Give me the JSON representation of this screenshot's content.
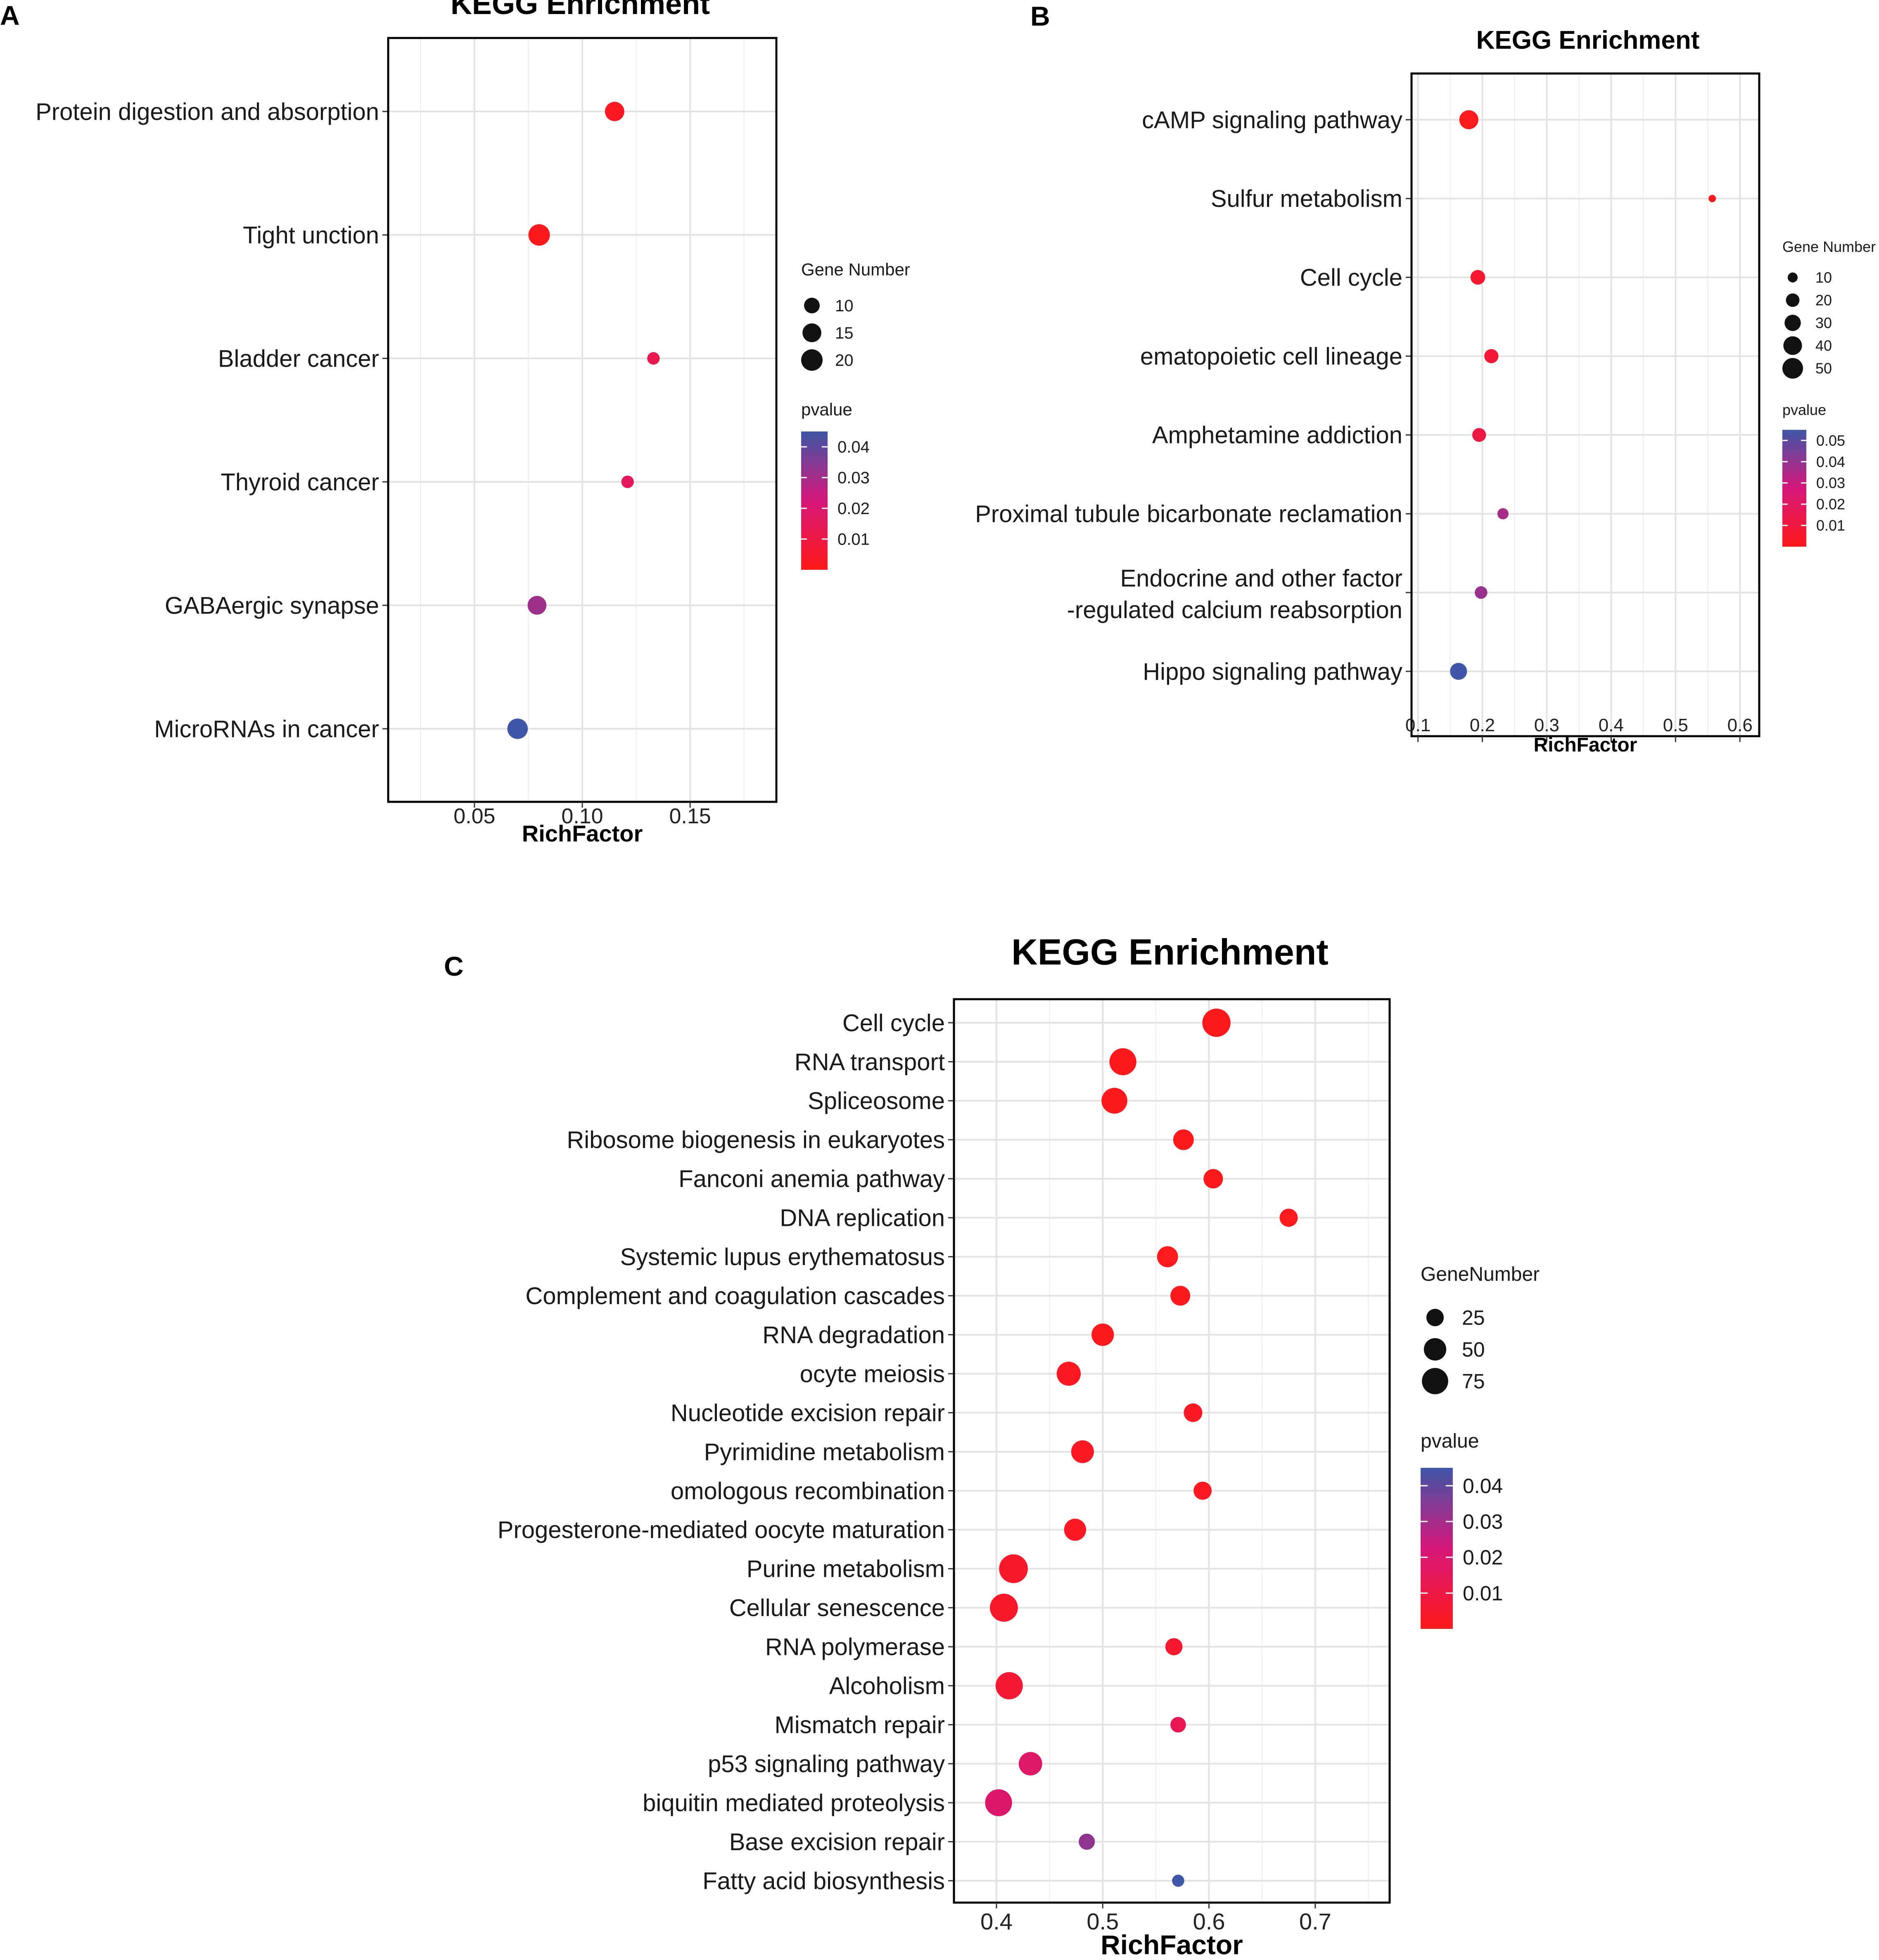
{
  "chart_data": [
    {
      "panel": "A",
      "type": "scatter",
      "title": "KEGG Enrichment",
      "xlabel": "RichFactor",
      "ylabel": "",
      "xlim": [
        0.01,
        0.19
      ],
      "xticks": [
        0.05,
        0.1,
        0.15
      ],
      "xtick_labels": [
        "0.05",
        "0.10",
        "0.15"
      ],
      "categories": [
        "Protein digestion and absorption",
        "Tight  unction",
        "Bladder cancer",
        "Thyroid cancer",
        "GABAergic synapse",
        "MicroRNAs in cancer"
      ],
      "rich_factor": [
        0.115,
        0.08,
        0.133,
        0.121,
        0.079,
        0.07
      ],
      "gene_number": [
        16,
        20,
        6,
        6,
        15,
        18
      ],
      "pvalue": [
        0.002,
        0.001,
        0.012,
        0.015,
        0.031,
        0.045
      ],
      "size_legend": {
        "title": "Gene Number",
        "values": [
          10,
          15,
          20
        ],
        "labels": [
          "10",
          "15",
          "20"
        ]
      },
      "color_legend": {
        "title": "pvalue",
        "range": [
          0.0,
          0.045
        ],
        "ticks": [
          0.04,
          0.03,
          0.02,
          0.01
        ],
        "labels": [
          "0.04",
          "0.03",
          "0.02",
          "0.01"
        ],
        "low_color": "#ff1a1a",
        "mid_color": "#d6177a",
        "high_color": "#3e57a8"
      },
      "grid": true
    },
    {
      "panel": "B",
      "type": "scatter",
      "title": "KEGG Enrichment",
      "xlabel": "RichFactor",
      "ylabel": "",
      "xlim": [
        0.09,
        0.63
      ],
      "xticks": [
        0.1,
        0.2,
        0.3,
        0.4,
        0.5,
        0.6
      ],
      "xtick_labels": [
        "0.1",
        "0.2",
        "0.3",
        "0.4",
        "0.5",
        "0.6"
      ],
      "categories": [
        "cAMP signaling pathway",
        "Sulfur metabolism",
        "Cell cycle",
        "ematopoietic cell lineage",
        "Amphetamine addiction",
        "Proximal tubule bicarbonate reclamation",
        "Endocrine and other factor\n-regulated calcium reabsorption",
        "Hippo signaling pathway"
      ],
      "rich_factor": [
        0.179,
        0.557,
        0.193,
        0.214,
        0.195,
        0.232,
        0.198,
        0.163
      ],
      "gene_number": [
        42,
        5,
        24,
        22,
        21,
        13,
        17,
        33
      ],
      "pvalue": [
        0.001,
        0.001,
        0.006,
        0.008,
        0.012,
        0.036,
        0.039,
        0.055
      ],
      "size_legend": {
        "title": "Gene Number",
        "values": [
          10,
          20,
          30,
          40,
          50
        ],
        "labels": [
          "10",
          "20",
          "30",
          "40",
          "50"
        ]
      },
      "color_legend": {
        "title": "pvalue",
        "range": [
          0.0,
          0.055
        ],
        "ticks": [
          0.05,
          0.04,
          0.03,
          0.02,
          0.01
        ],
        "labels": [
          "0.05",
          "0.04",
          "0.03",
          "0.02",
          "0.01"
        ],
        "low_color": "#ff1a1a",
        "mid_color": "#d6177a",
        "high_color": "#3e57a8"
      },
      "grid": true
    },
    {
      "panel": "C",
      "type": "scatter",
      "title": "KEGG Enrichment",
      "xlabel": "RichFactor",
      "ylabel": "",
      "xlim": [
        0.36,
        0.77
      ],
      "xticks": [
        0.4,
        0.5,
        0.6,
        0.7
      ],
      "xtick_labels": [
        "0.4",
        "0.5",
        "0.6",
        "0.7"
      ],
      "categories": [
        "Cell cycle",
        "RNA transport",
        "Spliceosome",
        "Ribosome biogenesis in eukaryotes",
        "Fanconi anemia pathway",
        "DNA replication",
        "Systemic lupus erythematosus",
        "Complement and coagulation cascades",
        "RNA degradation",
        "ocyte meiosis",
        "Nucleotide excision repair",
        "Pyrimidine metabolism",
        "omologous recombination",
        "Progesterone-mediated oocyte maturation",
        "Purine metabolism",
        "Cellular senescence",
        "RNA polymerase",
        "Alcoholism",
        "Mismatch repair",
        "p53 signaling pathway",
        "biquitin mediated proteolysis",
        "Base excision repair",
        "Fatty acid biosynthesis"
      ],
      "rich_factor": [
        0.607,
        0.519,
        0.511,
        0.576,
        0.604,
        0.675,
        0.561,
        0.573,
        0.5,
        0.468,
        0.585,
        0.481,
        0.594,
        0.474,
        0.416,
        0.407,
        0.567,
        0.412,
        0.571,
        0.432,
        0.402,
        0.485,
        0.571
      ],
      "gene_number": [
        90,
        80,
        72,
        40,
        34,
        28,
        42,
        36,
        50,
        60,
        30,
        52,
        28,
        48,
        94,
        88,
        24,
        82,
        18,
        56,
        80,
        20,
        8
      ],
      "pvalue": [
        0.0005,
        0.0005,
        0.0005,
        0.0005,
        0.0005,
        0.0008,
        0.0008,
        0.001,
        0.001,
        0.002,
        0.002,
        0.002,
        0.002,
        0.002,
        0.004,
        0.004,
        0.005,
        0.006,
        0.013,
        0.018,
        0.019,
        0.033,
        0.045
      ],
      "size_legend": {
        "title": "GeneNumber",
        "values": [
          25,
          50,
          75
        ],
        "labels": [
          "25",
          "50",
          "75"
        ]
      },
      "color_legend": {
        "title": "pvalue",
        "range": [
          0.0,
          0.045
        ],
        "ticks": [
          0.04,
          0.03,
          0.02,
          0.01
        ],
        "labels": [
          "0.04",
          "0.03",
          "0.02",
          "0.01"
        ],
        "low_color": "#ff1a1a",
        "mid_color": "#d6177a",
        "high_color": "#3e57a8"
      },
      "grid": true
    }
  ]
}
